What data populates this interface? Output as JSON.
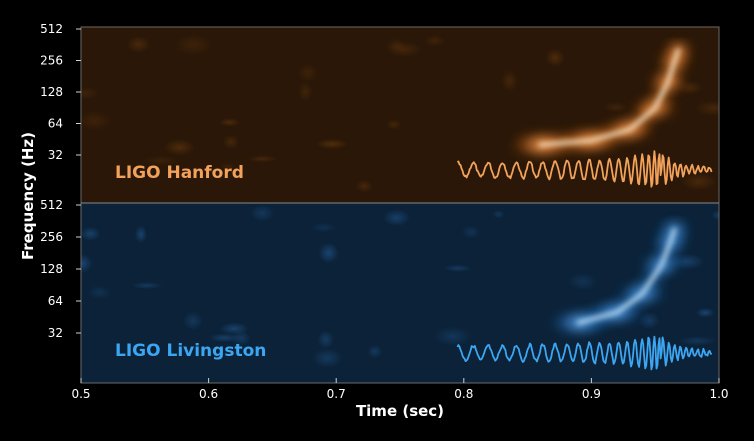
{
  "chart_data": {
    "type": "heatmap",
    "title": "",
    "xlabel": "Time (sec)",
    "ylabel": "Frequency (Hz)",
    "xlim": [
      0.5,
      1.0
    ],
    "x_ticks": [
      "0.5",
      "0.6",
      "0.7",
      "0.8",
      "0.9",
      "1.0"
    ],
    "y_scale": "log",
    "ylim": [
      16,
      512
    ],
    "y_ticks": [
      "512",
      "256",
      "128",
      "64",
      "32"
    ],
    "colors": {
      "hanford_bg": "#2a1707",
      "hanford_glow": "#ff8a2a",
      "hanford_core": "#fff3dc",
      "hanford_wave": "#f2a25a",
      "livingston_bg": "#0b2238",
      "livingston_glow": "#2f8fe6",
      "livingston_core": "#d8eeff",
      "livingston_wave": "#3da6f2"
    },
    "panels": [
      {
        "label": "LIGO Hanford",
        "chirp_track": [
          {
            "t": 0.86,
            "f": 40
          },
          {
            "t": 0.9,
            "f": 44
          },
          {
            "t": 0.93,
            "f": 56
          },
          {
            "t": 0.95,
            "f": 90
          },
          {
            "t": 0.96,
            "f": 160
          },
          {
            "t": 0.965,
            "f": 250
          },
          {
            "t": 0.968,
            "f": 320
          }
        ],
        "waveform_range": [
          0.795,
          0.995
        ]
      },
      {
        "label": "LIGO Livingston",
        "chirp_track": [
          {
            "t": 0.89,
            "f": 40
          },
          {
            "t": 0.92,
            "f": 50
          },
          {
            "t": 0.94,
            "f": 75
          },
          {
            "t": 0.955,
            "f": 140
          },
          {
            "t": 0.962,
            "f": 230
          },
          {
            "t": 0.965,
            "f": 300
          }
        ],
        "waveform_range": [
          0.795,
          0.995
        ]
      }
    ]
  }
}
